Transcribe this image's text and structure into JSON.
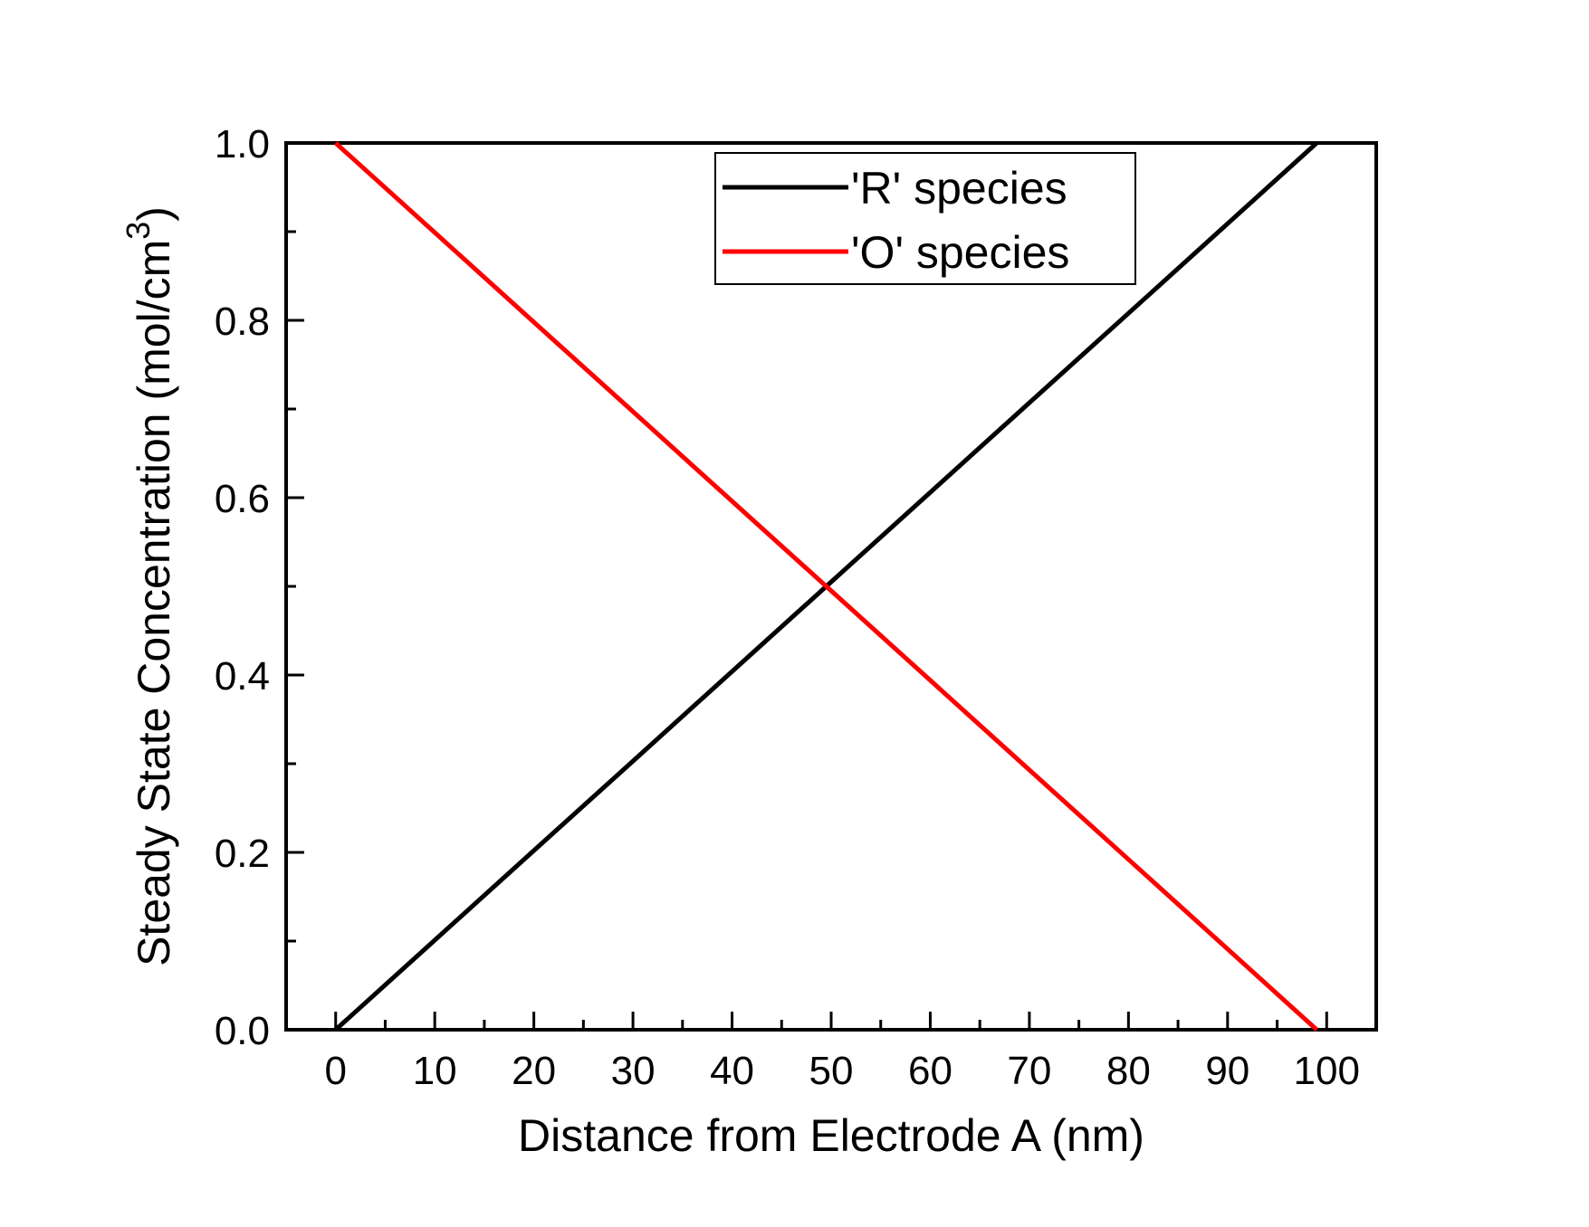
{
  "chart_data": {
    "type": "line",
    "title": "",
    "xlabel": "Distance from Electrode A (nm)",
    "ylabel": {
      "main": "Steady State Concentration (mol/cm",
      "superscript": "3",
      "close": ")"
    },
    "xlim": [
      -5,
      105
    ],
    "ylim": [
      0,
      1
    ],
    "x_ticks": [
      0,
      10,
      20,
      30,
      40,
      50,
      60,
      70,
      80,
      90,
      100
    ],
    "x_tick_labels": [
      "0",
      "10",
      "20",
      "30",
      "40",
      "50",
      "60",
      "70",
      "80",
      "90",
      "100"
    ],
    "x_minor_ticks": [
      5,
      15,
      25,
      35,
      45,
      55,
      65,
      75,
      85,
      95
    ],
    "y_ticks": [
      0,
      0.2,
      0.4,
      0.6,
      0.8,
      1.0
    ],
    "y_tick_labels": [
      "0.0",
      "0.2",
      "0.4",
      "0.6",
      "0.8",
      "1.0"
    ],
    "y_minor_ticks": [
      0.1,
      0.3,
      0.5,
      0.7,
      0.9
    ],
    "grid": false,
    "legend_position": "top-right",
    "series": [
      {
        "name": "'R' species",
        "color": "#000000",
        "x": [
          0,
          10,
          20,
          30,
          40,
          50,
          60,
          70,
          80,
          90,
          99
        ],
        "y": [
          0.0,
          0.101,
          0.202,
          0.303,
          0.404,
          0.505,
          0.606,
          0.707,
          0.808,
          0.909,
          1.0
        ]
      },
      {
        "name": "'O' species",
        "color": "#ff0000",
        "x": [
          0,
          10,
          20,
          30,
          40,
          50,
          60,
          70,
          80,
          90,
          99
        ],
        "y": [
          1.0,
          0.899,
          0.798,
          0.697,
          0.596,
          0.495,
          0.394,
          0.293,
          0.192,
          0.091,
          0.0
        ]
      }
    ]
  }
}
